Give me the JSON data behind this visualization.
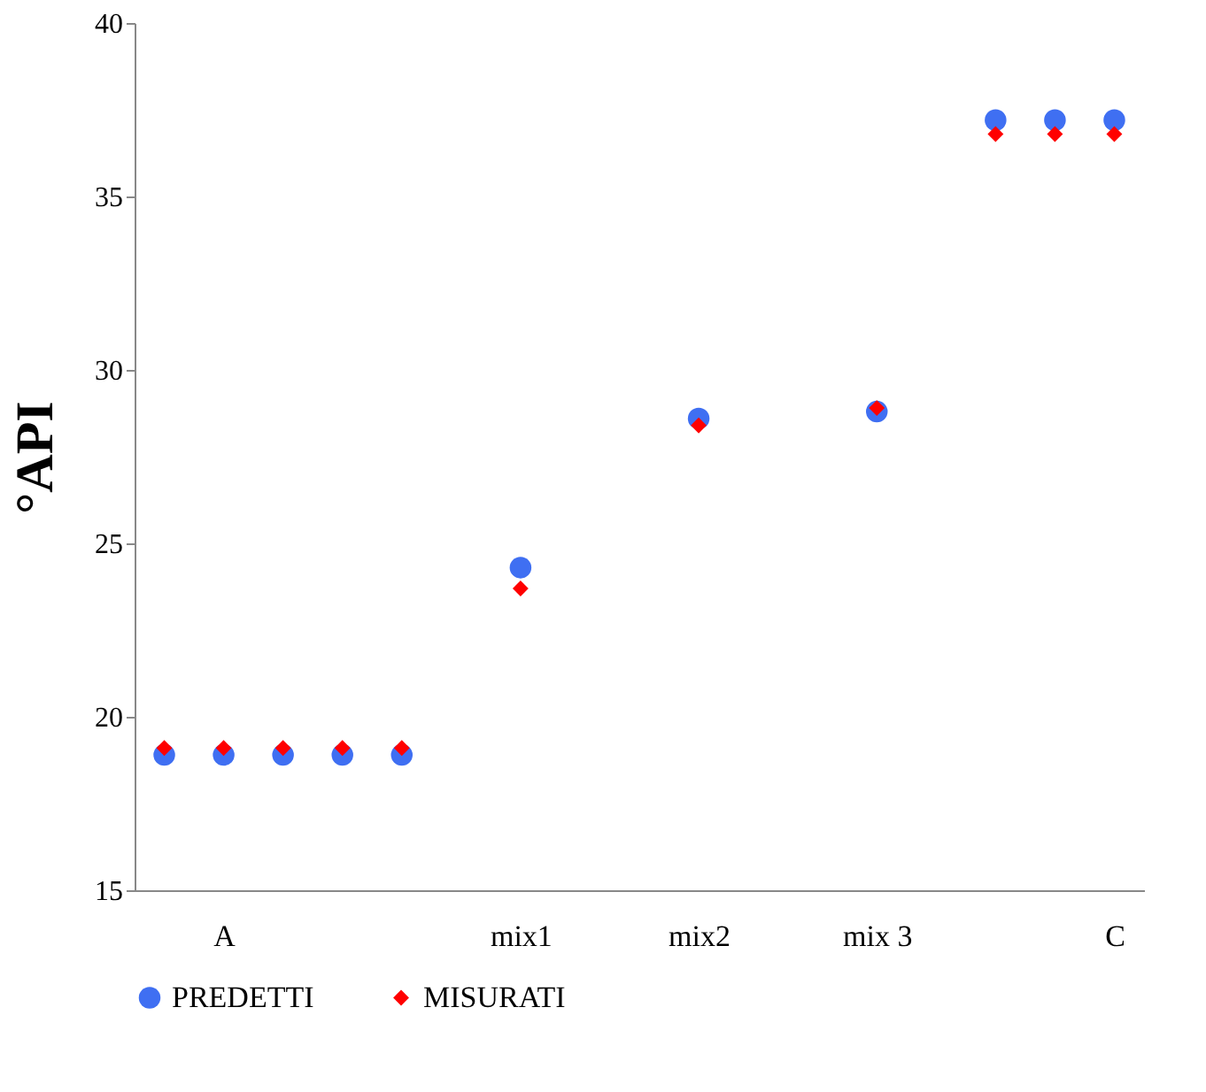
{
  "chart_data": {
    "type": "scatter",
    "ylabel": "°API",
    "categories": [
      null,
      "A",
      null,
      null,
      null,
      null,
      "mix1",
      null,
      null,
      "mix2",
      null,
      null,
      "mix 3",
      null,
      null,
      null,
      "C"
    ],
    "series": [
      {
        "name": "PREDETTI",
        "color": "#3f6ff2",
        "marker": "circle",
        "values": [
          18.9,
          18.9,
          18.9,
          18.9,
          18.9,
          null,
          24.3,
          null,
          null,
          28.6,
          null,
          null,
          28.8,
          null,
          37.2,
          37.2,
          37.2
        ]
      },
      {
        "name": "MISURATI",
        "color": "#ff0000",
        "marker": "diamond",
        "values": [
          19.1,
          19.1,
          19.1,
          19.1,
          19.1,
          null,
          23.7,
          null,
          null,
          28.4,
          null,
          null,
          28.9,
          null,
          36.8,
          36.8,
          36.8
        ]
      }
    ],
    "ylim": [
      15,
      40
    ],
    "yticks": [
      15,
      20,
      25,
      30,
      35,
      40
    ],
    "grid": false,
    "legend": "bottom"
  }
}
